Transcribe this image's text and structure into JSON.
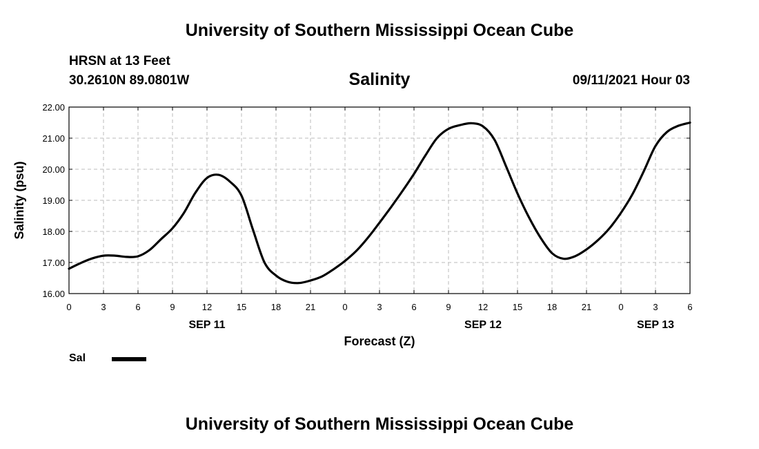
{
  "header": {
    "title": "University of Southern Mississippi Ocean Cube",
    "station": "HRSN at 13 Feet",
    "coords": "30.2610N  89.0801W",
    "chart_title": "Salinity",
    "datetime": "09/11/2021 Hour 03"
  },
  "footer": {
    "title": "University of Southern Mississippi Ocean Cube"
  },
  "legend": {
    "label": "Sal"
  },
  "colors": {
    "line": "#000000",
    "grid": "#bbbbbb"
  },
  "chart_data": {
    "type": "line",
    "title": "Salinity",
    "xlabel": "Forecast (Z)",
    "ylabel": "Salinity (psu)",
    "xlim": [
      0,
      54
    ],
    "ylim": [
      16.0,
      22.0
    ],
    "grid": true,
    "x_ticks": [
      0,
      3,
      6,
      9,
      12,
      15,
      18,
      21,
      24,
      27,
      30,
      33,
      36,
      39,
      42,
      45,
      48,
      51,
      54
    ],
    "x_tick_labels": [
      "0",
      "3",
      "6",
      "9",
      "12",
      "15",
      "18",
      "21",
      "0",
      "3",
      "6",
      "9",
      "12",
      "15",
      "18",
      "21",
      "0",
      "3",
      "6"
    ],
    "y_ticks": [
      16.0,
      17.0,
      18.0,
      19.0,
      20.0,
      21.0,
      22.0
    ],
    "y_tick_labels": [
      "16.00",
      "17.00",
      "18.00",
      "19.00",
      "20.00",
      "21.00",
      "22.00"
    ],
    "day_labels": [
      {
        "label": "SEP 11",
        "hour": 12
      },
      {
        "label": "SEP 12",
        "hour": 36
      },
      {
        "label": "SEP 13",
        "hour": 51
      }
    ],
    "series": [
      {
        "name": "Sal",
        "x": [
          0,
          1,
          2,
          3,
          4,
          5,
          6,
          7,
          8,
          9,
          10,
          11,
          12,
          13,
          14,
          15,
          16,
          17,
          18,
          19,
          20,
          21,
          22,
          23,
          24,
          25,
          26,
          27,
          28,
          29,
          30,
          31,
          32,
          33,
          34,
          35,
          36,
          37,
          38,
          39,
          40,
          41,
          42,
          43,
          44,
          45,
          46,
          47,
          48,
          49,
          50,
          51,
          52,
          53,
          54
        ],
        "values": [
          16.8,
          16.98,
          17.13,
          17.22,
          17.22,
          17.18,
          17.2,
          17.4,
          17.75,
          18.1,
          18.6,
          19.25,
          19.72,
          19.82,
          19.6,
          19.15,
          18.05,
          17.0,
          16.58,
          16.38,
          16.34,
          16.42,
          16.55,
          16.78,
          17.05,
          17.38,
          17.8,
          18.28,
          18.78,
          19.3,
          19.85,
          20.45,
          21.0,
          21.3,
          21.42,
          21.48,
          21.38,
          20.95,
          20.1,
          19.22,
          18.45,
          17.8,
          17.3,
          17.12,
          17.2,
          17.42,
          17.72,
          18.1,
          18.6,
          19.2,
          19.95,
          20.75,
          21.2,
          21.4,
          21.5
        ]
      }
    ]
  }
}
